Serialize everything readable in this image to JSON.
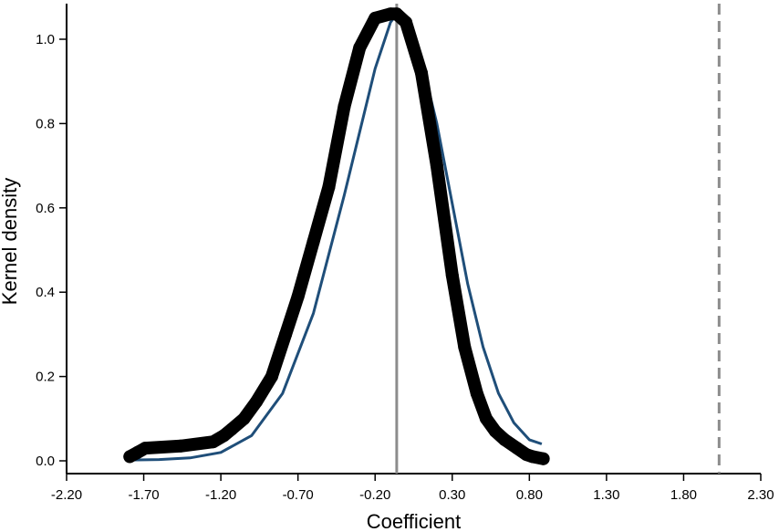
{
  "chart_data": {
    "type": "scatter",
    "title": "",
    "xlabel": "Coefficient",
    "ylabel": "Kernel density",
    "xlim": [
      -2.2,
      2.3
    ],
    "ylim": [
      0,
      1.07
    ],
    "xticks": [
      "-2.20",
      "-1.70",
      "-1.20",
      "-0.70",
      "-0.20",
      "0.30",
      "0.80",
      "1.30",
      "1.80",
      "2.30"
    ],
    "yticks": [
      "0.0",
      "0.2",
      "0.4",
      "0.6",
      "0.8",
      "1.0"
    ],
    "grid": false,
    "legend": "none",
    "series": [
      {
        "kind": "points",
        "color": "#000000",
        "x": [
          -1.79,
          -1.74,
          -1.69,
          -1.46,
          -1.25,
          -1.18,
          -1.13,
          -1.05,
          -0.97,
          -0.87,
          -0.78,
          -0.7,
          -0.6,
          -0.5,
          -0.4,
          -0.3,
          -0.2,
          -0.1,
          -0.06,
          0.0,
          0.1,
          0.2,
          0.3,
          0.38,
          0.46,
          0.52,
          0.58,
          0.64,
          0.72,
          0.78,
          0.82,
          0.89
        ],
        "y": [
          0.01,
          0.02,
          0.03,
          0.035,
          0.045,
          0.06,
          0.075,
          0.1,
          0.14,
          0.2,
          0.3,
          0.39,
          0.52,
          0.65,
          0.84,
          0.98,
          1.05,
          1.06,
          1.06,
          1.04,
          0.92,
          0.7,
          0.44,
          0.27,
          0.16,
          0.1,
          0.07,
          0.05,
          0.03,
          0.015,
          0.01,
          0.005
        ]
      },
      {
        "kind": "normal-curve",
        "color": "#1f4e79",
        "x": [
          -1.79,
          -1.6,
          -1.4,
          -1.2,
          -1.0,
          -0.8,
          -0.6,
          -0.4,
          -0.2,
          -0.1,
          -0.06,
          0.0,
          0.1,
          0.2,
          0.3,
          0.4,
          0.5,
          0.6,
          0.7,
          0.8,
          0.88
        ],
        "y": [
          0.002,
          0.003,
          0.007,
          0.02,
          0.06,
          0.16,
          0.35,
          0.63,
          0.93,
          1.04,
          1.06,
          1.04,
          0.95,
          0.8,
          0.61,
          0.42,
          0.27,
          0.16,
          0.09,
          0.05,
          0.04
        ]
      }
    ],
    "reference_lines": [
      {
        "name": "estimate-mean-line",
        "x": -0.06,
        "style": "solid",
        "color": "#8c8c8c"
      },
      {
        "name": "true-value-line",
        "x": 2.03,
        "style": "dashed",
        "color": "#8c8c8c"
      }
    ]
  }
}
